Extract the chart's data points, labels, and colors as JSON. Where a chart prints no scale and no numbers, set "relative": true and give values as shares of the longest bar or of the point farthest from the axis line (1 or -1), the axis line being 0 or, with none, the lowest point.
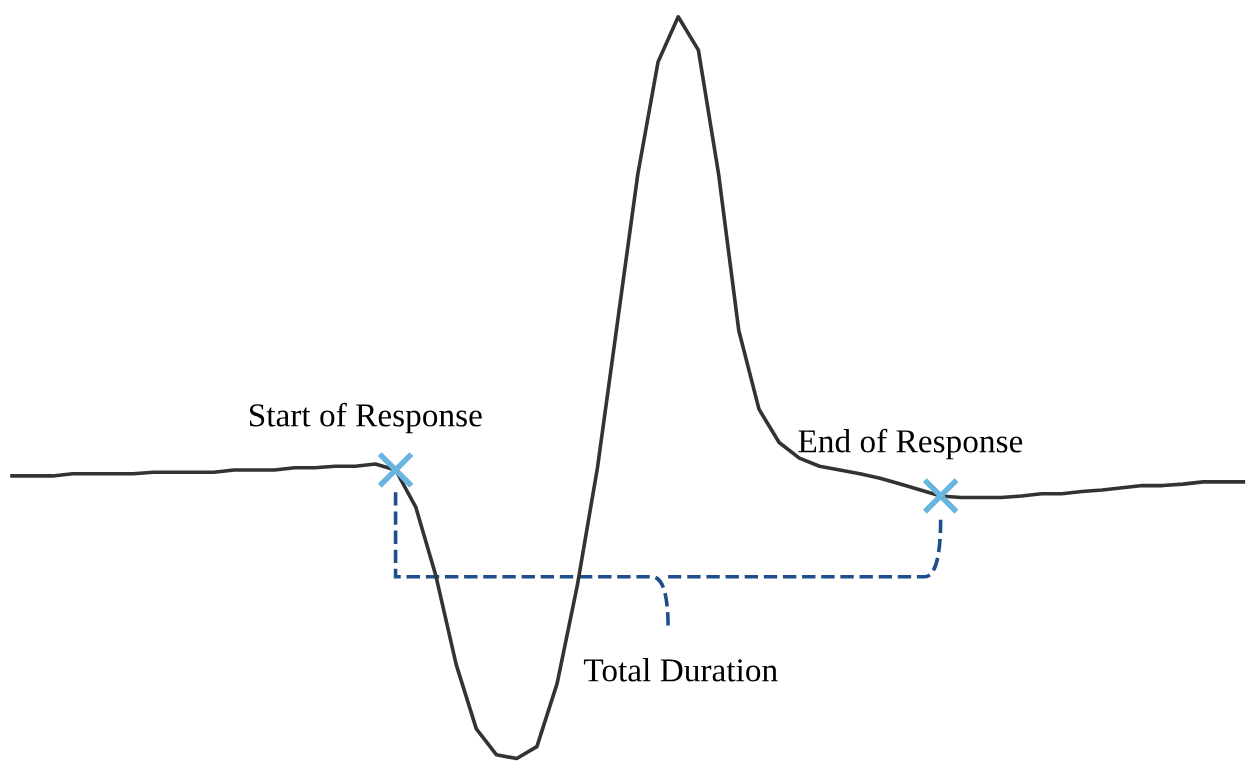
{
  "chart_data": {
    "type": "line",
    "relative": true,
    "categories": [
      null,
      null,
      null,
      null,
      null,
      null,
      null,
      null,
      null,
      null,
      null,
      null,
      null,
      null,
      null,
      null,
      null,
      null,
      null,
      null,
      null,
      null,
      null,
      null,
      null,
      null,
      null,
      null,
      null,
      null,
      null,
      null,
      null,
      null,
      null,
      null,
      null,
      null,
      null,
      null,
      null,
      null,
      null,
      null,
      null,
      null,
      null,
      null,
      null,
      null,
      null,
      null,
      null,
      null,
      null,
      null,
      null,
      null,
      null,
      null,
      null,
      null
    ],
    "series": [
      {
        "color": "#333333",
        "values": [
          0.381,
          0.381,
          0.381,
          0.384,
          0.384,
          0.384,
          0.384,
          0.386,
          0.386,
          0.386,
          0.386,
          0.389,
          0.389,
          0.389,
          0.392,
          0.392,
          0.394,
          0.394,
          0.397,
          0.389,
          0.339,
          0.246,
          0.127,
          0.04,
          0.005,
          0,
          0.016,
          0.101,
          0.233,
          0.392,
          0.59,
          0.788,
          0.939,
          1,
          0.955,
          0.788,
          0.577,
          0.471,
          0.426,
          0.405,
          0.394,
          0.389,
          0.384,
          0.378,
          0.37,
          0.362,
          0.354,
          0.352,
          0.352,
          0.352,
          0.354,
          0.357,
          0.357,
          0.36,
          0.362,
          0.365,
          0.368,
          0.368,
          0.37,
          0.373,
          0.373,
          0.373
        ]
      }
    ],
    "annotations": [
      {
        "text": "Start of Response",
        "y": 0.389
      },
      {
        "text": "End of Response",
        "y": 0.354
      },
      "Total Duration"
    ]
  }
}
